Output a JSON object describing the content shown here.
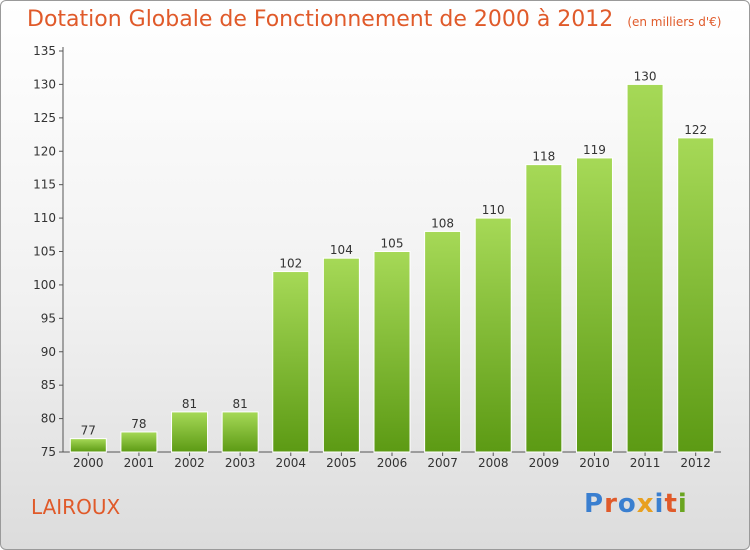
{
  "header": {
    "title": "Dotation Globale de Fonctionnement de 2000 à 2012",
    "subtitle": "(en milliers d'€)"
  },
  "footer": {
    "commune": "LAIROUX",
    "logo_text": "Proxiti",
    "logo_colors": [
      "#3a7fd0",
      "#e05a2a",
      "#3a7fd0",
      "#e8a020",
      "#3a7fd0",
      "#e05a2a",
      "#6aa520"
    ]
  },
  "chart_data": {
    "type": "bar",
    "title": "Dotation Globale de Fonctionnement de 2000 à 2012",
    "subtitle": "(en milliers d'€)",
    "xlabel": "",
    "ylabel": "",
    "categories": [
      "2000",
      "2001",
      "2002",
      "2003",
      "2004",
      "2005",
      "2006",
      "2007",
      "2008",
      "2009",
      "2010",
      "2011",
      "2012"
    ],
    "values": [
      77,
      78,
      81,
      81,
      102,
      104,
      105,
      108,
      110,
      118,
      119,
      130,
      122
    ],
    "data_labels": [
      "77",
      "78",
      "81",
      "81",
      "102",
      "104",
      "105",
      "108",
      "110",
      "118",
      "119",
      "130",
      "122"
    ],
    "ylim": [
      75,
      135
    ],
    "yticks": [
      75,
      80,
      85,
      90,
      95,
      100,
      105,
      110,
      115,
      120,
      125,
      130,
      135
    ],
    "ytick_labels": [
      "75",
      "80",
      "85",
      "90",
      "95",
      "100",
      "105",
      "110",
      "115",
      "120",
      "125",
      "130",
      "135"
    ],
    "grid": false,
    "bar_color": "#7cc22c",
    "bar_color_light": "#a6d957",
    "bar_color_dark": "#5c9a14"
  }
}
